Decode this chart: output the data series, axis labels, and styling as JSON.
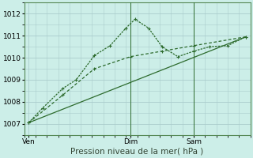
{
  "background_color": "#cceee8",
  "grid_color": "#aacccc",
  "line_color": "#2d6b2d",
  "xlabel": "Pression niveau de la mer( hPa )",
  "ylim": [
    1006.5,
    1012.5
  ],
  "yticks": [
    1007,
    1008,
    1009,
    1010,
    1011,
    1012
  ],
  "xlim": [
    0,
    10
  ],
  "xtick_positions": [
    0.2,
    4.7,
    7.5
  ],
  "xtick_labels": [
    "Ven",
    "Dim",
    "Sam"
  ],
  "vline_x": 4.7,
  "vline2_x": 7.5,
  "series1_x": [
    0.2,
    0.8,
    1.7,
    2.3,
    3.1,
    3.8,
    4.5,
    4.9,
    5.5,
    6.1,
    6.8,
    7.5,
    8.2,
    9.0,
    9.8
  ],
  "series1_y": [
    1007.05,
    1007.7,
    1008.6,
    1009.0,
    1010.1,
    1010.55,
    1011.35,
    1011.75,
    1011.35,
    1010.5,
    1010.05,
    1010.3,
    1010.5,
    1010.55,
    1010.95
  ],
  "series2_x": [
    0.2,
    1.7,
    3.1,
    4.7,
    6.1,
    7.5,
    9.8
  ],
  "series2_y": [
    1007.05,
    1008.3,
    1009.5,
    1010.05,
    1010.3,
    1010.55,
    1010.95
  ],
  "series3_x": [
    0.2,
    9.8
  ],
  "series3_y": [
    1007.05,
    1010.95
  ],
  "fontsize_label": 7.5,
  "fontsize_tick": 6.5
}
